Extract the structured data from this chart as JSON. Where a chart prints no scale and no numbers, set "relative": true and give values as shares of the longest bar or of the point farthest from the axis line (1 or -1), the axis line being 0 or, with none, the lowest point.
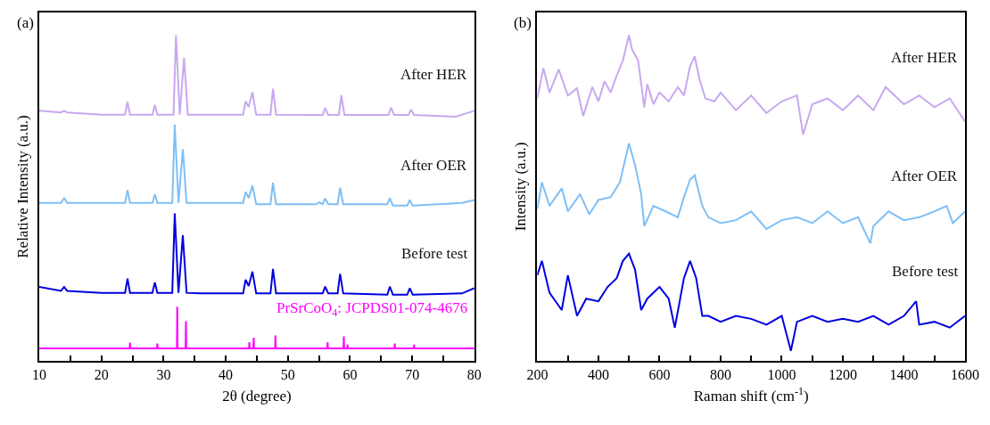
{
  "chart_data": [
    {
      "type": "line",
      "relative": true,
      "xlabel": "2θ (degree)",
      "ylabel": "Relative Intensity (a.u.)",
      "annotations": [
        "(a)"
      ],
      "grid": false,
      "marker": "none",
      "line_style": "solid",
      "tick_labels": "x",
      "xlim": [
        10,
        80
      ],
      "xticks": [
        10,
        {
          "value": 15,
          "label": null
        },
        20,
        {
          "value": 25,
          "label": null
        },
        30,
        {
          "value": 35,
          "label": null
        },
        40,
        {
          "value": 45,
          "label": null
        },
        50,
        {
          "value": 55,
          "label": null
        },
        60,
        {
          "value": 65,
          "label": null
        },
        70,
        {
          "value": 75,
          "label": null
        },
        80
      ],
      "series": [
        {
          "name": "After HER",
          "color": "#c8a8f0",
          "x": [
            10,
            13.5,
            14,
            14.5,
            20,
            23.8,
            24.2,
            24.6,
            28.2,
            28.6,
            29,
            31.6,
            32.0,
            32.6,
            33.3,
            33.9,
            36,
            42.8,
            43.2,
            43.7,
            44.3,
            44.9,
            47.2,
            47.6,
            48.1,
            54,
            55.6,
            56,
            56.5,
            58.2,
            58.6,
            59.1,
            66.2,
            66.6,
            67.1,
            69.4,
            69.8,
            70.3,
            77,
            80
          ],
          "values": [
            0.768,
            0.763,
            0.768,
            0.763,
            0.756,
            0.756,
            0.796,
            0.756,
            0.756,
            0.786,
            0.756,
            0.756,
            1.0,
            0.756,
            0.931,
            0.756,
            0.756,
            0.756,
            0.797,
            0.78,
            0.825,
            0.756,
            0.756,
            0.836,
            0.756,
            0.755,
            0.755,
            0.777,
            0.755,
            0.755,
            0.816,
            0.755,
            0.755,
            0.778,
            0.755,
            0.755,
            0.772,
            0.755,
            0.75,
            0.768
          ]
        },
        {
          "name": "After OER",
          "color": "#7fbff5",
          "x": [
            10,
            13.5,
            14,
            14.5,
            20,
            23.8,
            24.2,
            24.6,
            28.2,
            28.6,
            29,
            31.4,
            31.8,
            32.4,
            33.1,
            33.7,
            36,
            42.8,
            43.2,
            43.7,
            44.3,
            44.9,
            47.2,
            47.6,
            48.1,
            54.6,
            55,
            55.6,
            56,
            56.5,
            58.0,
            58.4,
            58.9,
            66.0,
            66.4,
            66.9,
            69.2,
            69.6,
            70.1,
            78,
            80
          ],
          "values": [
            0.485,
            0.485,
            0.5,
            0.485,
            0.485,
            0.485,
            0.525,
            0.485,
            0.485,
            0.511,
            0.485,
            0.485,
            0.726,
            0.485,
            0.65,
            0.485,
            0.485,
            0.485,
            0.519,
            0.5,
            0.538,
            0.481,
            0.481,
            0.547,
            0.481,
            0.481,
            0.487,
            0.481,
            0.499,
            0.481,
            0.481,
            0.532,
            0.481,
            0.481,
            0.5,
            0.477,
            0.477,
            0.494,
            0.477,
            0.485,
            0.494
          ]
        },
        {
          "name": "Before test",
          "color": "#0000e0",
          "x": [
            10,
            13.5,
            14,
            14.5,
            20,
            23.8,
            24.2,
            24.6,
            28.2,
            28.6,
            29,
            31.4,
            31.8,
            32.4,
            33.1,
            33.7,
            36,
            42.8,
            43.2,
            43.7,
            44.3,
            44.9,
            47.2,
            47.6,
            48.1,
            55.6,
            56,
            56.5,
            58.0,
            58.4,
            58.9,
            66.0,
            66.4,
            66.9,
            69.2,
            69.6,
            70.1,
            78,
            80
          ],
          "values": [
            0.227,
            0.215,
            0.227,
            0.215,
            0.209,
            0.209,
            0.253,
            0.209,
            0.209,
            0.241,
            0.209,
            0.209,
            0.453,
            0.209,
            0.386,
            0.209,
            0.207,
            0.207,
            0.249,
            0.23,
            0.274,
            0.207,
            0.207,
            0.282,
            0.207,
            0.207,
            0.228,
            0.207,
            0.207,
            0.267,
            0.207,
            0.203,
            0.228,
            0.203,
            0.203,
            0.223,
            0.203,
            0.207,
            0.223
          ]
        },
        {
          "name": "PrSrCoO$_{4}$: JCPDS01-074-4676",
          "color": "#ff00ff",
          "x": [
            10,
            24.55,
            24.6,
            24.65,
            28.95,
            29,
            29.05,
            32.15,
            32.2,
            32.25,
            33.55,
            33.6,
            33.65,
            43.75,
            43.8,
            43.85,
            44.45,
            44.5,
            44.55,
            47.95,
            48,
            48.05,
            56.35,
            56.4,
            56.45,
            58.95,
            59,
            59.05,
            59.55,
            59.6,
            59.65,
            67.15,
            67.2,
            67.25,
            70.25,
            70.3,
            70.35,
            80
          ],
          "values": [
            0.038,
            0.038,
            0.056,
            0.038,
            0.038,
            0.053,
            0.038,
            0.038,
            0.166,
            0.038,
            0.038,
            0.122,
            0.038,
            0.038,
            0.057,
            0.038,
            0.038,
            0.071,
            0.038,
            0.038,
            0.078,
            0.038,
            0.038,
            0.057,
            0.038,
            0.038,
            0.075,
            0.038,
            0.038,
            0.05,
            0.038,
            0.038,
            0.053,
            0.038,
            0.038,
            0.05,
            0.038,
            0.038
          ]
        }
      ]
    },
    {
      "type": "line",
      "relative": true,
      "xlabel": "Raman shift (cm$^{-1}$)",
      "ylabel": "Intensity (a.u.)",
      "annotations": [
        "(b)"
      ],
      "grid": false,
      "marker": "none",
      "line_style": "solid",
      "tick_labels": "x",
      "xlim": [
        200,
        1600
      ],
      "xticks": [
        200,
        {
          "value": 300,
          "label": null
        },
        400,
        {
          "value": 500,
          "label": null
        },
        600,
        {
          "value": 700,
          "label": null
        },
        800,
        {
          "value": 900,
          "label": null
        },
        1000,
        {
          "value": 1100,
          "label": null
        },
        1200,
        {
          "value": 1300,
          "label": null
        },
        1400,
        {
          "value": 1500,
          "label": null
        },
        1600
      ],
      "series": [
        {
          "name": "After HER",
          "color": "#c8a8f0",
          "x": [
            200,
            220,
            240,
            270,
            300,
            330,
            350,
            380,
            400,
            420,
            440,
            460,
            480,
            500,
            510,
            530,
            550,
            560,
            580,
            600,
            630,
            660,
            680,
            700,
            715,
            730,
            750,
            780,
            800,
            850,
            900,
            950,
            1000,
            1050,
            1070,
            1100,
            1150,
            1200,
            1250,
            1300,
            1340,
            1400,
            1450,
            1500,
            1550,
            1600
          ],
          "values": [
            0.806,
            0.899,
            0.824,
            0.895,
            0.815,
            0.837,
            0.752,
            0.841,
            0.797,
            0.859,
            0.824,
            0.877,
            0.922,
            1.0,
            0.957,
            0.922,
            0.779,
            0.85,
            0.788,
            0.824,
            0.797,
            0.841,
            0.815,
            0.904,
            0.935,
            0.868,
            0.806,
            0.797,
            0.824,
            0.77,
            0.815,
            0.761,
            0.797,
            0.815,
            0.695,
            0.788,
            0.806,
            0.77,
            0.815,
            0.77,
            0.841,
            0.788,
            0.815,
            0.779,
            0.806,
            0.735
          ]
        },
        {
          "name": "After OER",
          "color": "#7fbff5",
          "x": [
            200,
            215,
            240,
            280,
            300,
            340,
            370,
            400,
            440,
            470,
            490,
            500,
            520,
            540,
            550,
            580,
            620,
            660,
            680,
            700,
            715,
            740,
            760,
            800,
            850,
            900,
            950,
            1000,
            1050,
            1100,
            1150,
            1200,
            1250,
            1290,
            1300,
            1350,
            1400,
            1450,
            1500,
            1540,
            1560,
            1600
          ],
          "values": [
            0.467,
            0.548,
            0.476,
            0.53,
            0.459,
            0.512,
            0.45,
            0.494,
            0.503,
            0.548,
            0.628,
            0.668,
            0.601,
            0.512,
            0.414,
            0.476,
            0.459,
            0.441,
            0.503,
            0.557,
            0.57,
            0.476,
            0.441,
            0.423,
            0.432,
            0.459,
            0.405,
            0.432,
            0.441,
            0.423,
            0.459,
            0.423,
            0.441,
            0.361,
            0.414,
            0.459,
            0.432,
            0.441,
            0.459,
            0.476,
            0.423,
            0.459
          ]
        },
        {
          "name": "Before test",
          "color": "#0000e0",
          "x": [
            200,
            215,
            240,
            280,
            300,
            330,
            360,
            400,
            430,
            460,
            480,
            500,
            520,
            540,
            560,
            600,
            630,
            650,
            680,
            700,
            720,
            740,
            760,
            800,
            850,
            900,
            950,
            1000,
            1030,
            1050,
            1100,
            1150,
            1200,
            1250,
            1300,
            1350,
            1400,
            1440,
            1450,
            1500,
            1550,
            1600
          ],
          "values": [
            0.263,
            0.307,
            0.209,
            0.156,
            0.263,
            0.138,
            0.191,
            0.183,
            0.227,
            0.254,
            0.307,
            0.329,
            0.28,
            0.156,
            0.191,
            0.227,
            0.191,
            0.102,
            0.254,
            0.307,
            0.254,
            0.138,
            0.138,
            0.12,
            0.138,
            0.129,
            0.111,
            0.138,
            0.031,
            0.12,
            0.138,
            0.12,
            0.129,
            0.12,
            0.138,
            0.111,
            0.138,
            0.183,
            0.111,
            0.12,
            0.102,
            0.138
          ]
        }
      ]
    }
  ]
}
